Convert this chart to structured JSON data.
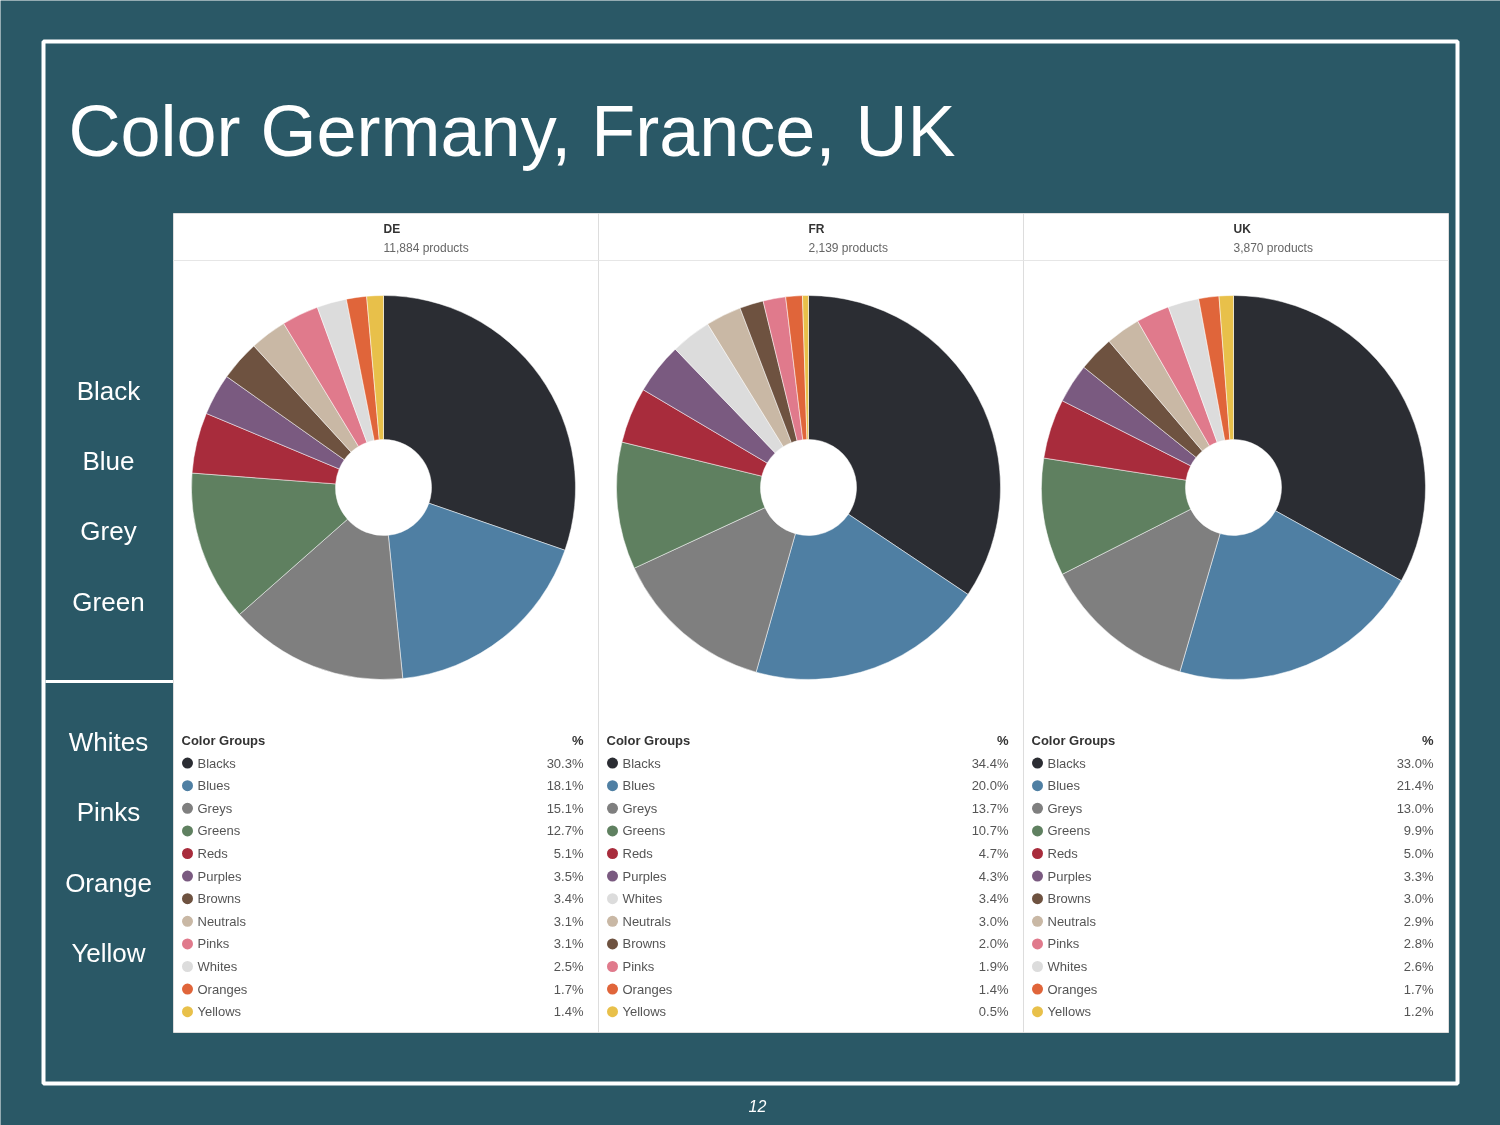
{
  "chart_data": [
    {
      "type": "other",
      "title": "Color Germany, France, UK",
      "annotations": [
        "Black",
        "Blue",
        "Grey",
        "Green",
        "Whites",
        "Pinks",
        "Orange",
        "Yellow",
        "12"
      ]
    },
    {
      "type": "donut",
      "title": "DE",
      "subtitle": "11,884 products",
      "legend_title": "Color Groups",
      "annotations": [
        "%"
      ],
      "legend": "bottom",
      "categories": [
        "Blacks",
        "Blues",
        "Greys",
        "Greens",
        "Reds",
        "Purples",
        "Browns",
        "Neutrals",
        "Pinks",
        "Whites",
        "Oranges",
        "Yellows"
      ],
      "values": [
        30.3,
        18.1,
        15.1,
        12.7,
        5.1,
        3.5,
        3.4,
        3.1,
        3.1,
        2.5,
        1.7,
        1.4
      ],
      "value_labels": [
        "30.3%",
        "18.1%",
        "15.1%",
        "12.7%",
        "5.1%",
        "3.5%",
        "3.4%",
        "3.1%",
        "3.1%",
        "2.5%",
        "1.7%",
        "1.4%"
      ],
      "colors": [
        "#2b2d33",
        "#4f7fa3",
        "#7f7f7f",
        "#5f8060",
        "#a82c3c",
        "#7a5a80",
        "#6e5240",
        "#c9b8a5",
        "#e07a8c",
        "#dcdcdc",
        "#e0653a",
        "#e8c04a"
      ]
    },
    {
      "type": "donut",
      "title": "FR",
      "subtitle": "2,139 products",
      "legend_title": "Color Groups",
      "annotations": [
        "%"
      ],
      "legend": "bottom",
      "categories": [
        "Blacks",
        "Blues",
        "Greys",
        "Greens",
        "Reds",
        "Purples",
        "Whites",
        "Neutrals",
        "Browns",
        "Pinks",
        "Oranges",
        "Yellows"
      ],
      "values": [
        34.4,
        20.0,
        13.7,
        10.7,
        4.7,
        4.3,
        3.4,
        3.0,
        2.0,
        1.9,
        1.4,
        0.5
      ],
      "value_labels": [
        "34.4%",
        "20.0%",
        "13.7%",
        "10.7%",
        "4.7%",
        "4.3%",
        "3.4%",
        "3.0%",
        "2.0%",
        "1.9%",
        "1.4%",
        "0.5%"
      ],
      "colors": [
        "#2b2d33",
        "#4f7fa3",
        "#7f7f7f",
        "#5f8060",
        "#a82c3c",
        "#7a5a80",
        "#dcdcdc",
        "#c9b8a5",
        "#6e5240",
        "#e07a8c",
        "#e0653a",
        "#e8c04a"
      ]
    },
    {
      "type": "donut",
      "title": "UK",
      "subtitle": "3,870 products",
      "legend_title": "Color Groups",
      "annotations": [
        "%"
      ],
      "legend": "bottom",
      "categories": [
        "Blacks",
        "Blues",
        "Greys",
        "Greens",
        "Reds",
        "Purples",
        "Browns",
        "Neutrals",
        "Pinks",
        "Whites",
        "Oranges",
        "Yellows"
      ],
      "values": [
        33.0,
        21.4,
        13.0,
        9.9,
        5.0,
        3.3,
        3.0,
        2.9,
        2.8,
        2.6,
        1.7,
        1.2
      ],
      "value_labels": [
        "33.0%",
        "21.4%",
        "13.0%",
        "9.9%",
        "5.0%",
        "3.3%",
        "3.0%",
        "2.9%",
        "2.8%",
        "2.6%",
        "1.7%",
        "1.2%"
      ],
      "colors": [
        "#2b2d33",
        "#4f7fa3",
        "#7f7f7f",
        "#5f8060",
        "#a82c3c",
        "#7a5a80",
        "#6e5240",
        "#c9b8a5",
        "#e07a8c",
        "#dcdcdc",
        "#e0653a",
        "#e8c04a"
      ]
    }
  ]
}
